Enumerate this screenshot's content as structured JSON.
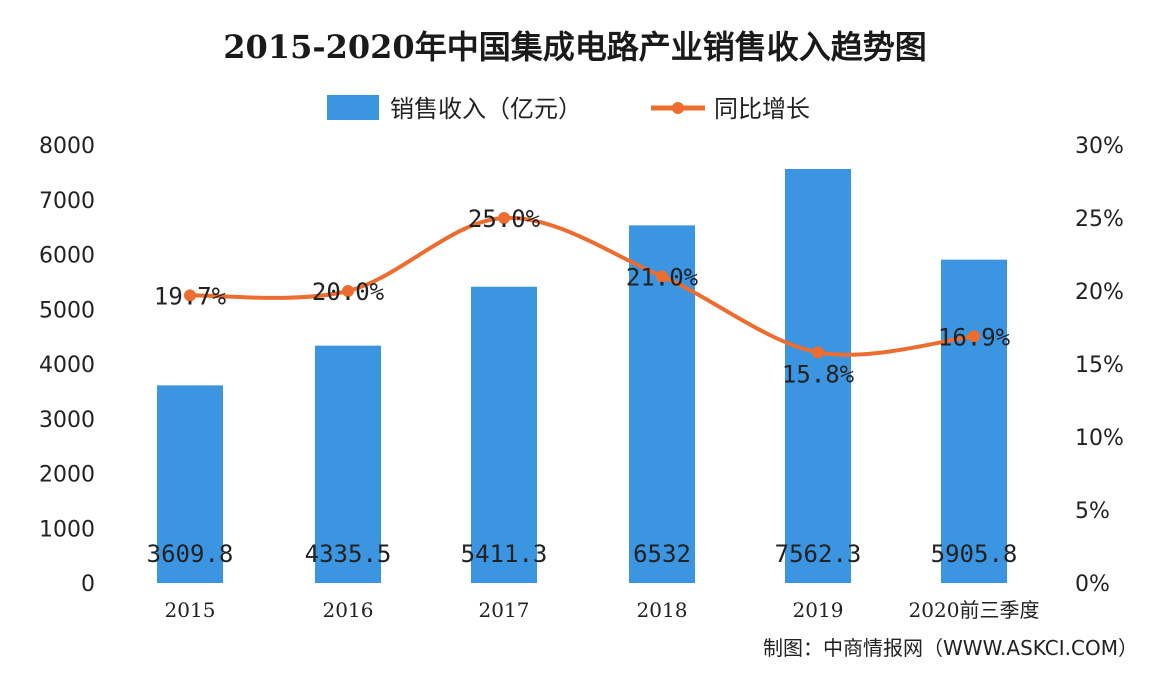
{
  "chart_data": {
    "type": "bar",
    "title": "2015-2020年中国集成电路产业销售收入趋势图",
    "categories": [
      "2015",
      "2016",
      "2017",
      "2018",
      "2019",
      "2020前三季度"
    ],
    "series": [
      {
        "name": "销售收入（亿元）",
        "type": "bar",
        "axis": "left",
        "color": "#3b95e0",
        "values": [
          3609.8,
          4335.5,
          5411.3,
          6532,
          7562.3,
          5905.8
        ],
        "labels": [
          "3609.8",
          "4335.5",
          "5411.3",
          "6532",
          "7562.3",
          "5905.8"
        ]
      },
      {
        "name": "同比增长",
        "type": "line",
        "axis": "right",
        "color": "#ec6d2f",
        "values": [
          19.7,
          20.0,
          25.0,
          21.0,
          15.8,
          16.9
        ],
        "labels": [
          "19.7%",
          "20.0%",
          "25.0%",
          "21.0%",
          "15.8%",
          "16.9%"
        ]
      }
    ],
    "y_left": {
      "ticks": [
        0,
        1000,
        2000,
        3000,
        4000,
        5000,
        6000,
        7000,
        8000
      ],
      "ylim": [
        0,
        8000
      ]
    },
    "y_right": {
      "ticks": [
        "0%",
        "5%",
        "10%",
        "15%",
        "20%",
        "25%",
        "30%"
      ],
      "ylim": [
        0,
        30
      ]
    },
    "legend_position": "top-center",
    "grid": false
  },
  "source_note": "制图：中商情报网（WWW.ASKCI.COM）"
}
